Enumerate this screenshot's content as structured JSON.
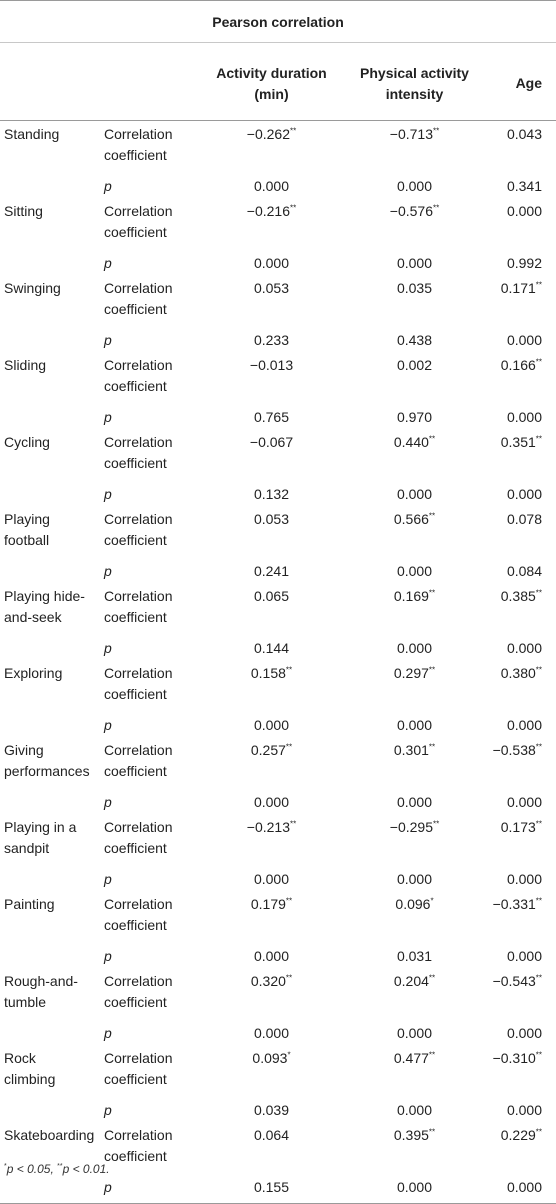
{
  "header": {
    "group_title": "Pearson correlation",
    "col_duration_line1": "Activity duration",
    "col_duration_line2": "(min)",
    "col_intensity_line1": "Physical activity",
    "col_intensity_line2": "intensity",
    "col_age": "Age"
  },
  "labels": {
    "coef_line1": "Correlation",
    "coef_line2": "coefficient",
    "p": "p"
  },
  "rows": [
    {
      "name_line1": "Standing",
      "name_line2": "",
      "coef": [
        "−0.262",
        "−0.713",
        "0.043"
      ],
      "coef_sig": [
        "**",
        "**",
        ""
      ],
      "p": [
        "0.000",
        "0.000",
        "0.341"
      ]
    },
    {
      "name_line1": "Sitting",
      "name_line2": "",
      "coef": [
        "−0.216",
        "−0.576",
        "0.000"
      ],
      "coef_sig": [
        "**",
        "**",
        ""
      ],
      "p": [
        "0.000",
        "0.000",
        "0.992"
      ]
    },
    {
      "name_line1": "Swinging",
      "name_line2": "",
      "coef": [
        "0.053",
        "0.035",
        "0.171"
      ],
      "coef_sig": [
        "",
        "",
        "**"
      ],
      "p": [
        "0.233",
        "0.438",
        "0.000"
      ]
    },
    {
      "name_line1": "Sliding",
      "name_line2": "",
      "coef": [
        "−0.013",
        "0.002",
        "0.166"
      ],
      "coef_sig": [
        "",
        "",
        "**"
      ],
      "p": [
        "0.765",
        "0.970",
        "0.000"
      ]
    },
    {
      "name_line1": "Cycling",
      "name_line2": "",
      "coef": [
        "−0.067",
        "0.440",
        "0.351"
      ],
      "coef_sig": [
        "",
        "**",
        "**"
      ],
      "p": [
        "0.132",
        "0.000",
        "0.000"
      ]
    },
    {
      "name_line1": "Playing",
      "name_line2": "football",
      "coef": [
        "0.053",
        "0.566",
        "0.078"
      ],
      "coef_sig": [
        "",
        "**",
        ""
      ],
      "p": [
        "0.241",
        "0.000",
        "0.084"
      ]
    },
    {
      "name_line1": "Playing hide-",
      "name_line2": "and-seek",
      "coef": [
        "0.065",
        "0.169",
        "0.385"
      ],
      "coef_sig": [
        "",
        "**",
        "**"
      ],
      "p": [
        "0.144",
        "0.000",
        "0.000"
      ]
    },
    {
      "name_line1": "Exploring",
      "name_line2": "",
      "coef": [
        "0.158",
        "0.297",
        "0.380"
      ],
      "coef_sig": [
        "**",
        "**",
        "**"
      ],
      "p": [
        "0.000",
        "0.000",
        "0.000"
      ]
    },
    {
      "name_line1": "Giving",
      "name_line2": "performances",
      "coef": [
        "0.257",
        "0.301",
        "−0.538"
      ],
      "coef_sig": [
        "**",
        "**",
        "**"
      ],
      "p": [
        "0.000",
        "0.000",
        "0.000"
      ]
    },
    {
      "name_line1": "Playing in a",
      "name_line2": "sandpit",
      "coef": [
        "−0.213",
        "−0.295",
        "0.173"
      ],
      "coef_sig": [
        "**",
        "**",
        "**"
      ],
      "p": [
        "0.000",
        "0.000",
        "0.000"
      ]
    },
    {
      "name_line1": "Painting",
      "name_line2": "",
      "coef": [
        "0.179",
        "0.096",
        "−0.331"
      ],
      "coef_sig": [
        "**",
        "*",
        "**"
      ],
      "p": [
        "0.000",
        "0.031",
        "0.000"
      ]
    },
    {
      "name_line1": "Rough-and-",
      "name_line2": "tumble",
      "coef": [
        "0.320",
        "0.204",
        "−0.543"
      ],
      "coef_sig": [
        "**",
        "**",
        "**"
      ],
      "p": [
        "0.000",
        "0.000",
        "0.000"
      ]
    },
    {
      "name_line1": "Rock",
      "name_line2": "climbing",
      "coef": [
        "0.093",
        "0.477",
        "−0.310"
      ],
      "coef_sig": [
        "*",
        "**",
        "**"
      ],
      "p": [
        "0.039",
        "0.000",
        "0.000"
      ]
    },
    {
      "name_line1": "Skateboarding",
      "name_line2": "",
      "coef": [
        "0.064",
        "0.395",
        "0.229"
      ],
      "coef_sig": [
        "",
        "**",
        "**"
      ],
      "p": [
        "0.155",
        "0.000",
        "0.000"
      ]
    }
  ],
  "footnote": {
    "sig1_mark": "*",
    "sig1_text": "p < 0.05, ",
    "sig2_mark": "**",
    "sig2_text": "p < 0.01."
  }
}
